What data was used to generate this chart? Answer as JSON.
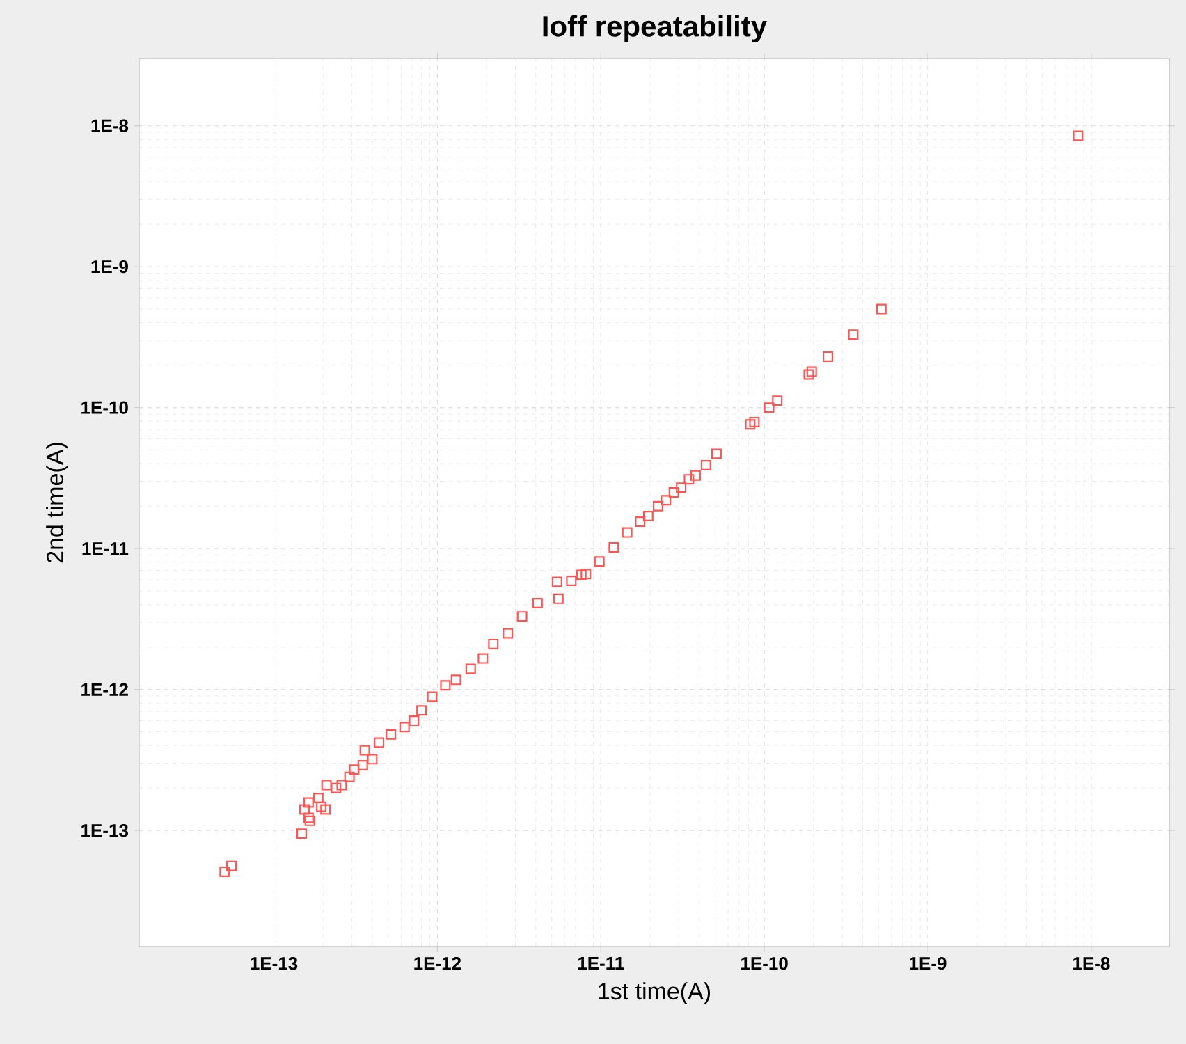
{
  "chart_data": {
    "type": "scatter",
    "title": "Ioff repeatability",
    "xlabel": "1st time(A)",
    "ylabel": "2nd time(A)",
    "log": "xy",
    "grid": true,
    "marker": "square",
    "xlim": [
      1.5e-14,
      3e-08
    ],
    "ylim": [
      1.5e-14,
      3e-08
    ],
    "xticks": [
      {
        "value": 1e-13,
        "label": "1E-13"
      },
      {
        "value": 1e-12,
        "label": "1E-12"
      },
      {
        "value": 1e-11,
        "label": "1E-11"
      },
      {
        "value": 1e-10,
        "label": "1E-10"
      },
      {
        "value": 1e-09,
        "label": "1E-9"
      },
      {
        "value": 1e-08,
        "label": "1E-8"
      }
    ],
    "yticks": [
      {
        "value": 1e-13,
        "label": "1E-13"
      },
      {
        "value": 1e-12,
        "label": "1E-12"
      },
      {
        "value": 1e-11,
        "label": "1E-11"
      },
      {
        "value": 1e-10,
        "label": "1E-10"
      },
      {
        "value": 1e-09,
        "label": "1E-9"
      },
      {
        "value": 1e-08,
        "label": "1E-8"
      }
    ],
    "series": [
      {
        "color": "#ff5555",
        "x": [
          5e-14,
          5.5e-14,
          1.48e-13,
          1.66e-13,
          1.63e-13,
          1.54e-13,
          2.07e-13,
          1.95e-13,
          1.87e-13,
          1.63e-13,
          2.1e-13,
          2.4e-13,
          2.6e-13,
          2.9e-13,
          3.1e-13,
          3.5e-13,
          4e-13,
          3.6e-13,
          4.4e-13,
          5.2e-13,
          6.3e-13,
          7.2e-13,
          8e-13,
          9.3e-13,
          1.12e-12,
          1.3e-12,
          1.6e-12,
          1.9e-12,
          2.2e-12,
          2.7e-12,
          3.3e-12,
          4.1e-12,
          5.5e-12,
          5.4e-12,
          6.6e-12,
          7.6e-12,
          8.1e-12,
          9.8e-12,
          1.2e-11,
          1.45e-11,
          1.74e-11,
          1.95e-11,
          2.24e-11,
          2.5e-11,
          2.8e-11,
          3.1e-11,
          3.46e-11,
          3.8e-11,
          4.4e-11,
          5.1e-11,
          8.2e-11,
          8.7e-11,
          1.07e-10,
          1.2e-10,
          1.87e-10,
          1.95e-10,
          2.45e-10,
          3.5e-10,
          5.2e-10,
          8.3e-09
        ],
        "values": [
          5.1e-14,
          5.6e-14,
          9.5e-14,
          1.17e-13,
          1.23e-13,
          1.41e-13,
          1.41e-13,
          1.47e-13,
          1.7e-13,
          1.58e-13,
          2.1e-13,
          2e-13,
          2.1e-13,
          2.4e-13,
          2.7e-13,
          2.9e-13,
          3.2e-13,
          3.7e-13,
          4.2e-13,
          4.8e-13,
          5.4e-13,
          6e-13,
          7.1e-13,
          8.9e-13,
          1.07e-12,
          1.17e-12,
          1.4e-12,
          1.66e-12,
          2.1e-12,
          2.5e-12,
          3.3e-12,
          4.1e-12,
          4.4e-12,
          5.8e-12,
          5.9e-12,
          6.5e-12,
          6.6e-12,
          8.1e-12,
          1.02e-11,
          1.3e-11,
          1.55e-11,
          1.7e-11,
          2e-11,
          2.2e-11,
          2.5e-11,
          2.7e-11,
          3.1e-11,
          3.3e-11,
          3.9e-11,
          4.7e-11,
          7.6e-11,
          7.9e-11,
          1e-10,
          1.12e-10,
          1.72e-10,
          1.8e-10,
          2.3e-10,
          3.3e-10,
          5e-10,
          8.5e-09
        ]
      }
    ]
  }
}
